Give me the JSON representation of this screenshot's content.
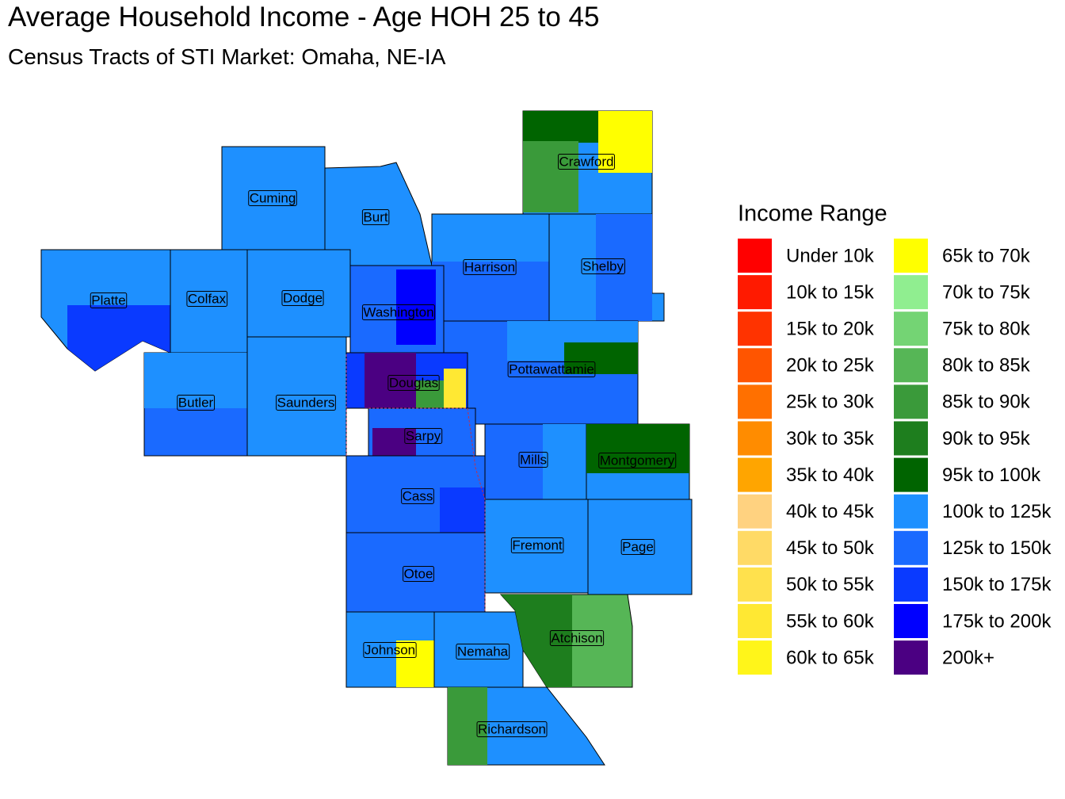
{
  "title": "Average Household Income - Age HOH 25 to 45",
  "subtitle": "Census Tracts of STI Market: Omaha, NE-IA",
  "legend": {
    "title": "Income Range",
    "items": [
      {
        "label": "Under 10k",
        "color": "#ff0000"
      },
      {
        "label": "10k to 15k",
        "color": "#ff1a00"
      },
      {
        "label": "15k to 20k",
        "color": "#ff3300"
      },
      {
        "label": "20k to 25k",
        "color": "#ff5500"
      },
      {
        "label": "25k to 30k",
        "color": "#ff7000"
      },
      {
        "label": "30k to 35k",
        "color": "#ff8c00"
      },
      {
        "label": "35k to 40k",
        "color": "#ffa500"
      },
      {
        "label": "40k to 45k",
        "color": "#ffd280"
      },
      {
        "label": "45k to 50k",
        "color": "#ffda66"
      },
      {
        "label": "50k to 55k",
        "color": "#ffe14d"
      },
      {
        "label": "55k to 60k",
        "color": "#ffe833"
      },
      {
        "label": "60k to 65k",
        "color": "#fff51a"
      },
      {
        "label": "65k to 70k",
        "color": "#ffff00"
      },
      {
        "label": "70k to 75k",
        "color": "#90ee90"
      },
      {
        "label": "75k to 80k",
        "color": "#74d474"
      },
      {
        "label": "80k to 85k",
        "color": "#56b656"
      },
      {
        "label": "85k to 90k",
        "color": "#3a9a3a"
      },
      {
        "label": "90k to 95k",
        "color": "#1e7e1e"
      },
      {
        "label": "95k to 100k",
        "color": "#006400"
      },
      {
        "label": "100k to 125k",
        "color": "#1e90ff"
      },
      {
        "label": "125k to 150k",
        "color": "#1a6aff"
      },
      {
        "label": "150k to 175k",
        "color": "#0a3aff"
      },
      {
        "label": "175k to 200k",
        "color": "#0000ff"
      },
      {
        "label": "200k+",
        "color": "#4b0082"
      }
    ]
  },
  "counties": [
    "Crawford",
    "Cuming",
    "Burt",
    "Harrison",
    "Shelby",
    "Platte",
    "Colfax",
    "Dodge",
    "Washington",
    "Douglas",
    "Pottawattamie",
    "Butler",
    "Saunders",
    "Sarpy",
    "Mills",
    "Montgomery",
    "Cass",
    "Fremont",
    "Page",
    "Otoe",
    "Johnson",
    "Nemaha",
    "Atchison",
    "Richardson"
  ]
}
